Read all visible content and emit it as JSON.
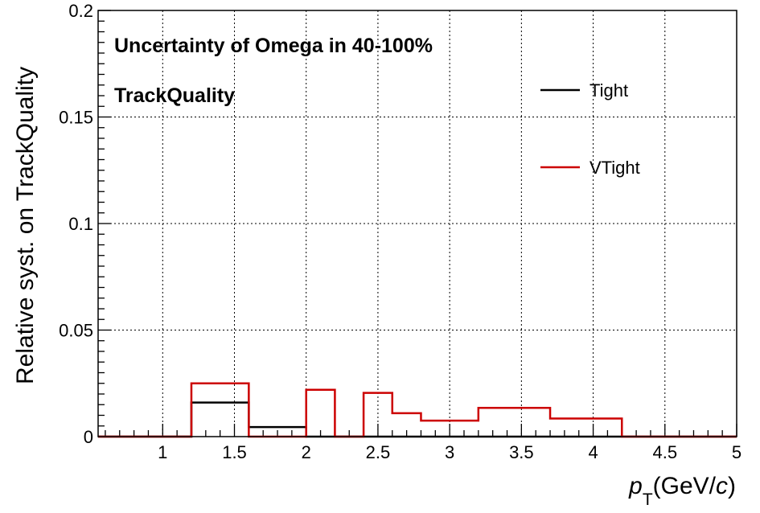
{
  "chart_data": {
    "type": "step",
    "xlabel_main": "p",
    "xlabel_sub": "T",
    "xlabel_units_open": "(GeV/",
    "xlabel_units_var": "c",
    "xlabel_units_close": ")",
    "ylabel": "Relative syst. on TrackQuality",
    "xlim": [
      0.55,
      5.0
    ],
    "ylim": [
      0,
      0.2
    ],
    "xticks": [
      1,
      1.5,
      2,
      2.5,
      3,
      3.5,
      4,
      4.5,
      5
    ],
    "xtick_labels": [
      "1",
      "1.5",
      "2",
      "2.5",
      "3",
      "3.5",
      "4",
      "4.5",
      "5"
    ],
    "yticks": [
      0,
      0.05,
      0.1,
      0.15,
      0.2
    ],
    "ytick_labels": [
      "0",
      "0.05",
      "0.1",
      "0.15",
      "0.2"
    ],
    "grid": true,
    "annotations": [
      "Uncertainty of Omega in 40-100%",
      "TrackQuality"
    ],
    "legend_position": "top-right",
    "bin_edges": [
      0.55,
      1.2,
      1.6,
      2.0,
      2.2,
      2.4,
      2.6,
      2.8,
      3.2,
      3.7,
      4.2,
      5.0
    ],
    "series": [
      {
        "name": "Tight",
        "color": "#000000",
        "values": [
          0,
          0.016,
          0.0045,
          0,
          0,
          0,
          0,
          0,
          0,
          0,
          0
        ]
      },
      {
        "name": "VTight",
        "color": "#cc0000",
        "values": [
          0,
          0.025,
          0,
          0.022,
          0,
          0.0205,
          0.011,
          0.0075,
          0.0135,
          0.0085,
          0
        ]
      }
    ]
  }
}
